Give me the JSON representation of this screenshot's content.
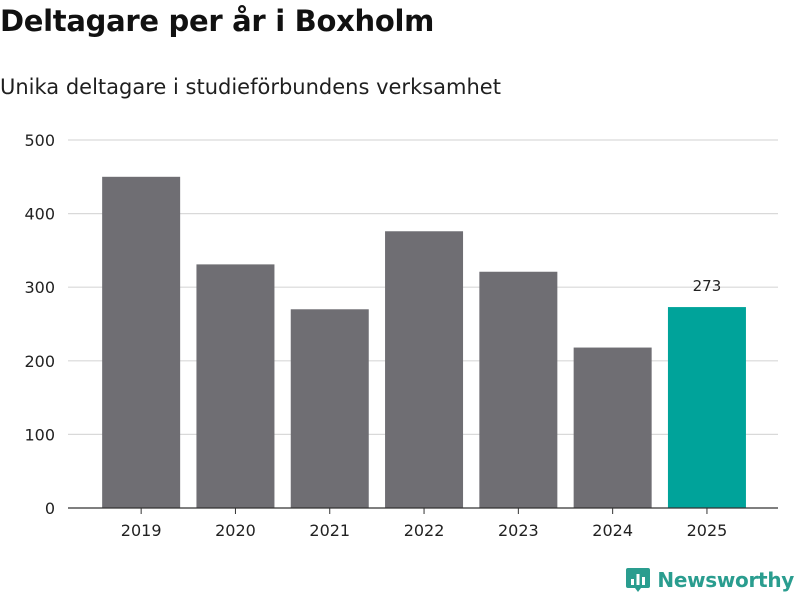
{
  "header": {
    "title": "Deltagare per år i Boxholm",
    "subtitle": "Unika deltagare i studieförbundens verksamhet"
  },
  "brand": {
    "name": "Newsworthy",
    "icon": "newsworthy-logo-icon",
    "color": "#2a9d8f"
  },
  "colors": {
    "bar": "#6f6e73",
    "highlight": "#00a39a",
    "grid": "#d9d9d9",
    "axis": "#333333"
  },
  "chart_data": {
    "type": "bar",
    "title": "Deltagare per år i Boxholm",
    "subtitle": "Unika deltagare i studieförbundens verksamhet",
    "xlabel": "",
    "ylabel": "",
    "categories": [
      "2019",
      "2020",
      "2021",
      "2022",
      "2023",
      "2024",
      "2025"
    ],
    "values": [
      450,
      331,
      270,
      376,
      321,
      218,
      273
    ],
    "highlight_index": 6,
    "data_labels": [
      {
        "index": 6,
        "text": "273"
      }
    ],
    "ylim": [
      0,
      500
    ],
    "yticks": [
      0,
      100,
      200,
      300,
      400,
      500
    ],
    "ytick_labels": [
      "0",
      "100",
      "200",
      "300",
      "400",
      "500"
    ],
    "grid": true,
    "legend": "none"
  }
}
